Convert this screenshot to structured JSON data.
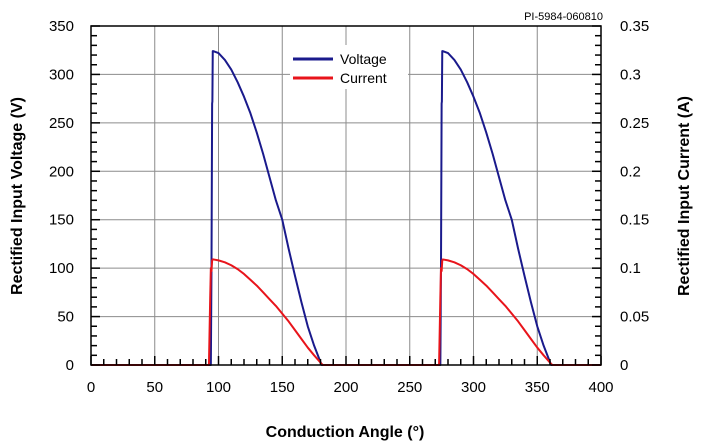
{
  "chart_data": {
    "type": "line",
    "figure_id": "PI-5984-060810",
    "xlabel": "Conduction Angle (°)",
    "ylabel_left": "Rectified Input Voltage (V)",
    "ylabel_right": "Rectified Input Current (A)",
    "xlim": [
      0,
      400
    ],
    "ylim_left": [
      0,
      350
    ],
    "ylim_right": [
      0,
      0.35
    ],
    "xticks": [
      "0",
      "50",
      "100",
      "150",
      "200",
      "250",
      "300",
      "350",
      "400"
    ],
    "yticks_left": [
      "0",
      "50",
      "100",
      "150",
      "200",
      "250",
      "300",
      "350"
    ],
    "yticks_right": [
      "0",
      "0.05",
      "0.1",
      "0.15",
      "0.2",
      "0.25",
      "0.3",
      "0.35"
    ],
    "grid": true,
    "legend_position": "top-center",
    "series": [
      {
        "name": "Voltage",
        "axis": "left",
        "color": "#1a1a8c",
        "x": [
          0,
          94,
          94.5,
          95,
          95.2,
          95.5,
          96,
          100,
          105,
          110,
          115,
          120,
          125,
          130,
          135,
          140,
          145,
          150,
          155,
          160,
          165,
          170,
          175,
          180,
          181,
          181.5,
          182,
          200,
          250,
          274,
          274.5,
          275,
          275.2,
          275.5,
          276,
          280,
          285,
          290,
          295,
          300,
          305,
          310,
          315,
          320,
          325,
          330,
          335,
          340,
          345,
          350,
          355,
          360,
          361,
          361.5,
          362,
          400
        ],
        "y": [
          0,
          0,
          100,
          270,
          272,
          324,
          324,
          322,
          315,
          305,
          292,
          277,
          260,
          240,
          218,
          194,
          170,
          150,
          120,
          92,
          65,
          40,
          20,
          3,
          0,
          0,
          0,
          0,
          0,
          0,
          100,
          270,
          272,
          324,
          324,
          322,
          315,
          305,
          292,
          277,
          260,
          240,
          218,
          194,
          170,
          150,
          120,
          92,
          65,
          40,
          20,
          3,
          0,
          0,
          0,
          0
        ]
      },
      {
        "name": "Current",
        "axis": "right",
        "color": "#e8141b",
        "x": [
          0,
          92.5,
          93,
          93.5,
          94,
          94.5,
          95,
          95.5,
          96,
          100,
          105,
          110,
          115,
          120,
          125,
          130,
          135,
          140,
          145,
          150,
          155,
          160,
          165,
          170,
          175,
          179,
          181,
          182,
          200,
          273,
          273.5,
          274,
          274.5,
          275,
          275.5,
          276,
          280,
          285,
          290,
          295,
          300,
          305,
          310,
          315,
          320,
          325,
          330,
          335,
          340,
          345,
          350,
          355,
          359,
          361,
          362,
          400
        ],
        "y": [
          0,
          0,
          0.035,
          0.07,
          0.1,
          0.097,
          0.108,
          0.109,
          0.109,
          0.108,
          0.106,
          0.103,
          0.099,
          0.094,
          0.088,
          0.082,
          0.075,
          0.068,
          0.061,
          0.053,
          0.045,
          0.036,
          0.027,
          0.018,
          0.01,
          0.004,
          0.001,
          0,
          0,
          0,
          0.035,
          0.07,
          0.1,
          0.097,
          0.108,
          0.109,
          0.108,
          0.106,
          0.103,
          0.099,
          0.094,
          0.088,
          0.082,
          0.075,
          0.068,
          0.061,
          0.053,
          0.045,
          0.036,
          0.027,
          0.018,
          0.01,
          0.004,
          0.001,
          0,
          0
        ]
      }
    ]
  }
}
